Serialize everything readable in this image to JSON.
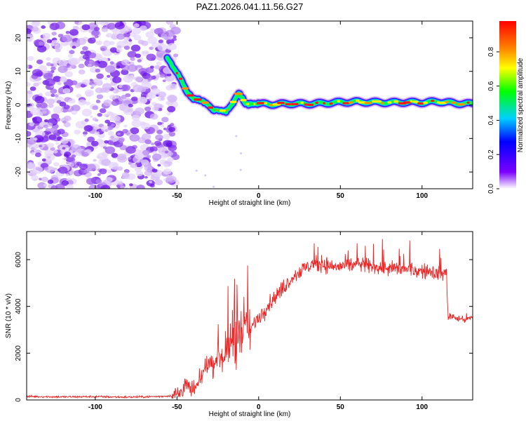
{
  "title": "PAZ1.2026.041.11.56.G27",
  "chart_data": [
    {
      "type": "heatmap",
      "name": "spectrogram",
      "xlabel": "Height of straight line (km)",
      "ylabel": "Frequency (Hz)",
      "xlim": [
        -142,
        131
      ],
      "ylim": [
        -25,
        25
      ],
      "xticks": [
        -100,
        -50,
        0,
        50,
        100
      ],
      "yticks": [
        -20,
        -10,
        0,
        10,
        20
      ],
      "colorbar": {
        "label": "Normalized spectral amplitude",
        "range": [
          0.0,
          0.98
        ],
        "ticks": [
          0.0,
          0.2,
          0.4,
          0.6,
          0.8
        ],
        "tick_labels": [
          "0.0",
          "0.2",
          "0.4",
          "0.6",
          "0.8"
        ],
        "colormap": [
          "#ffffff",
          "#7b00ff",
          "#0000ff",
          "#00d0ff",
          "#00ff00",
          "#ffff00",
          "#ff8000",
          "#ff0000"
        ]
      },
      "noise_region_km": [
        -142,
        -53
      ],
      "ridge": {
        "x": [
          -56,
          -52,
          -48,
          -44,
          -40,
          -36,
          -32,
          -28,
          -24,
          -20,
          -16,
          -12,
          -10,
          -8,
          -4,
          0,
          10,
          20,
          30,
          40,
          50,
          60,
          70,
          80,
          90,
          100,
          110,
          120,
          131
        ],
        "y": [
          14,
          11,
          8,
          4,
          1.8,
          1.5,
          0.5,
          -1.5,
          -1.5,
          -2,
          0.5,
          3.5,
          2,
          0.3,
          0.2,
          0.3,
          0.2,
          0.4,
          0.3,
          0.5,
          0.8,
          0.9,
          0.8,
          0.7,
          0.8,
          0.7,
          1,
          0.5,
          0.3
        ]
      }
    },
    {
      "type": "line",
      "name": "snr",
      "xlabel": "Height of straight line (km)",
      "ylabel": "SNR (10 * v/v)",
      "xlim": [
        -142,
        131
      ],
      "ylim": [
        0,
        7200
      ],
      "xticks": [
        -100,
        -50,
        0,
        50,
        100
      ],
      "yticks": [
        0,
        2000,
        4000,
        6000
      ],
      "color": "#ee2222",
      "series": [
        {
          "name": "SNR",
          "x": [
            -142,
            -120,
            -100,
            -80,
            -60,
            -53,
            -48,
            -45,
            -42,
            -38,
            -35,
            -32,
            -30,
            -28,
            -25,
            -22,
            -20,
            -18,
            -16,
            -14,
            -12,
            -10,
            -8,
            -6,
            -4,
            -2,
            0,
            5,
            10,
            15,
            20,
            25,
            30,
            35,
            40,
            45,
            50,
            60,
            70,
            80,
            90,
            100,
            105,
            110,
            115,
            116,
            118,
            120,
            125,
            131
          ],
          "y": [
            150,
            130,
            140,
            120,
            150,
            180,
            300,
            700,
            400,
            500,
            1000,
            1500,
            1700,
            1400,
            2000,
            1800,
            2400,
            2000,
            2900,
            1600,
            3200,
            2500,
            3600,
            2800,
            3100,
            3400,
            3500,
            4000,
            4400,
            4800,
            5200,
            5500,
            5700,
            5800,
            5800,
            5700,
            5700,
            5800,
            5700,
            5600,
            5600,
            5500,
            5500,
            5400,
            5400,
            3500,
            3600,
            3500,
            3450,
            3500
          ]
        }
      ]
    }
  ]
}
